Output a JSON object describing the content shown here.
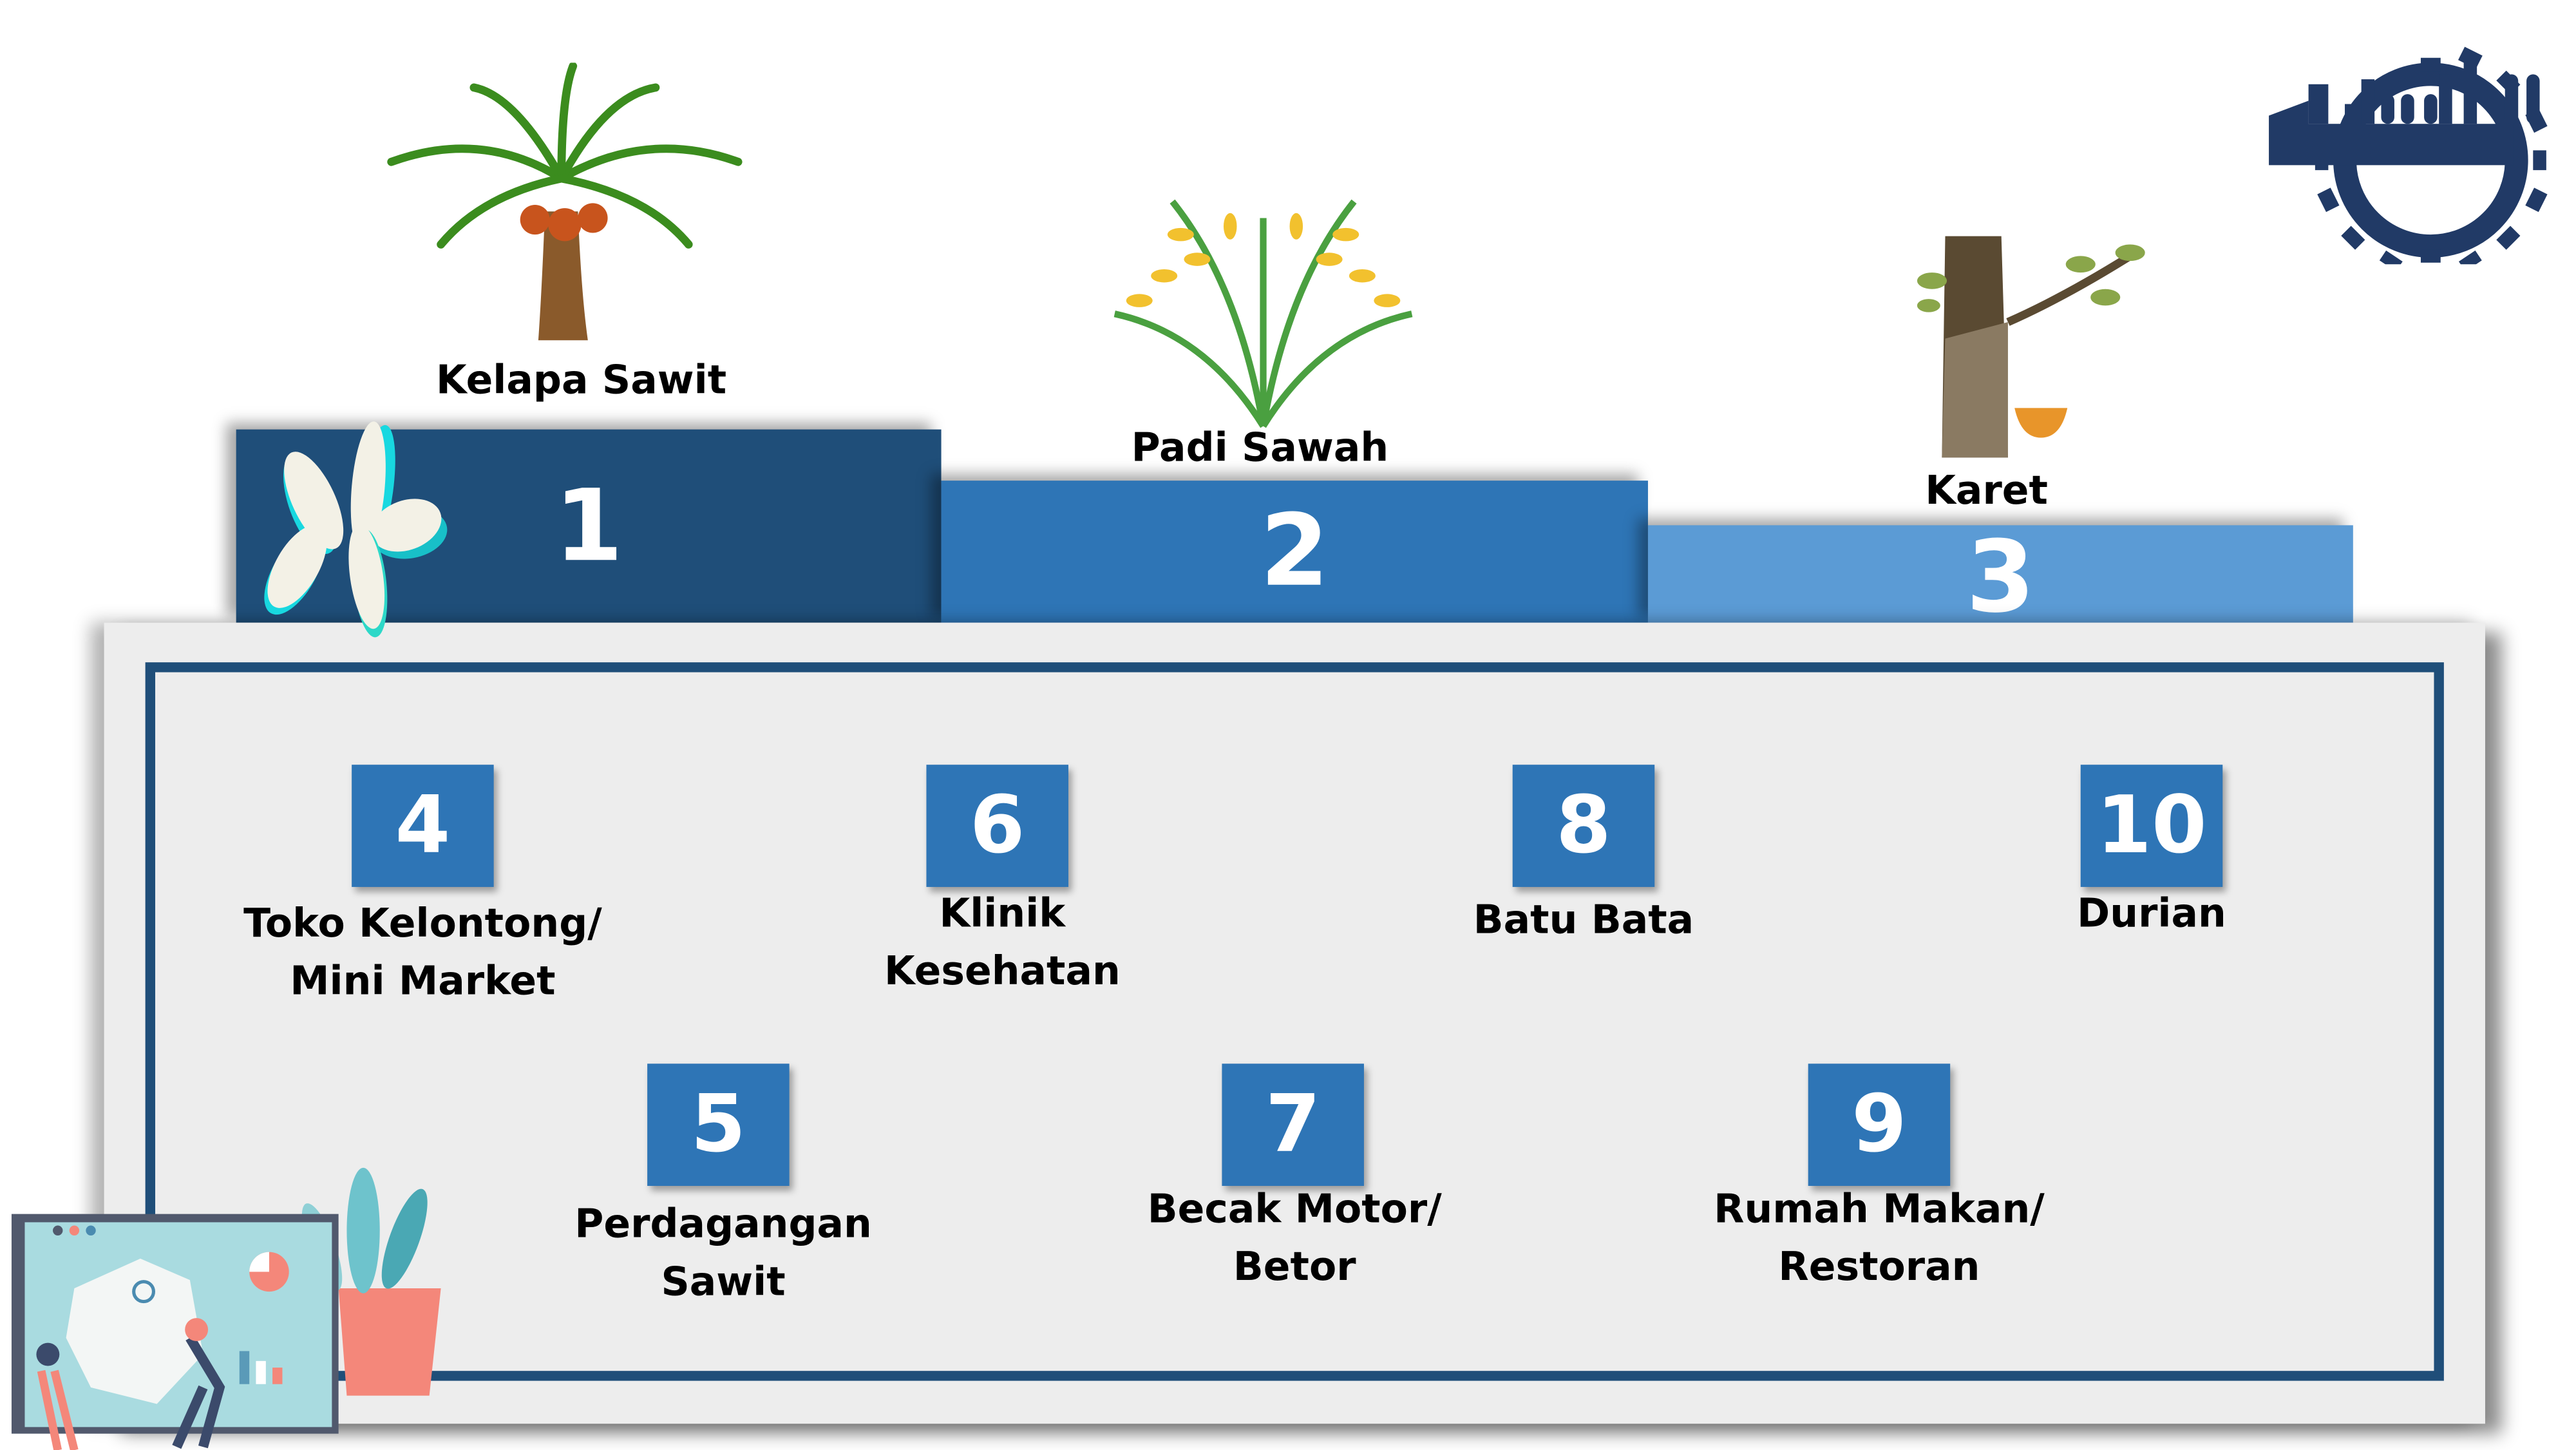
{
  "podium": [
    {
      "rank": "1",
      "label": "Kelapa Sawit",
      "color": "#1F4E79",
      "icon": "oil-palm-tree"
    },
    {
      "rank": "2",
      "label": "Padi Sawah",
      "color": "#2E75B6",
      "icon": "rice-plant"
    },
    {
      "rank": "3",
      "label": "Karet",
      "color": "#5B9BD5",
      "icon": "rubber-tree"
    }
  ],
  "items": [
    {
      "rank": "4",
      "label_1": "Toko Kelontong/",
      "label_2": "Mini Market"
    },
    {
      "rank": "5",
      "label_1": "Perdagangan",
      "label_2": "Sawit"
    },
    {
      "rank": "6",
      "label_1": "Klinik",
      "label_2": "Kesehatan"
    },
    {
      "rank": "7",
      "label_1": "Becak Motor/",
      "label_2": "Betor"
    },
    {
      "rank": "8",
      "label_1": "Batu Bata",
      "label_2": ""
    },
    {
      "rank": "9",
      "label_1": "Rumah Makan/",
      "label_2": "Restoran"
    },
    {
      "rank": "10",
      "label_1": "Durian",
      "label_2": ""
    }
  ],
  "colors": {
    "dark_blue": "#1F4E79",
    "mid_blue": "#2E75B6",
    "light_blue": "#5B9BD5",
    "panel": "#EDEDED",
    "logo": "#213A66"
  }
}
